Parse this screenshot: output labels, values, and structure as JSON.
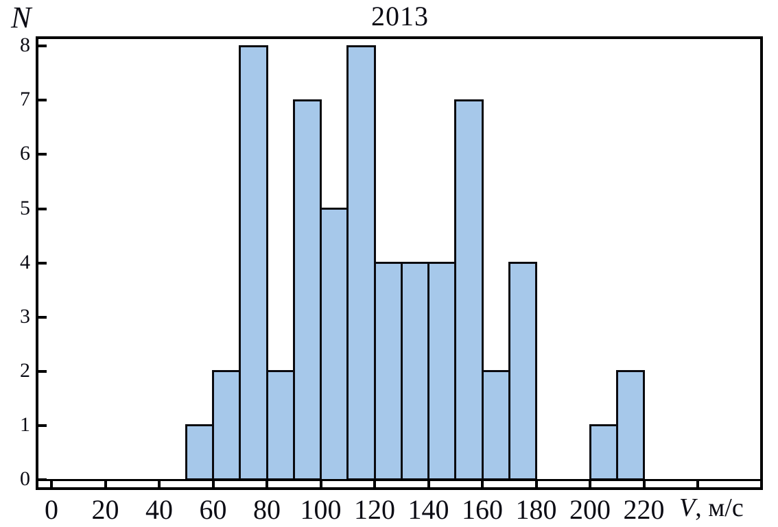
{
  "figure": {
    "title": "2013",
    "y_axis_letter": "N",
    "x_axis_letter": "V",
    "x_axis_unit_suffix": ", м/с"
  },
  "chart_data": {
    "type": "bar",
    "title": "2013",
    "xlabel": "V, м/с",
    "ylabel": "N",
    "grid": false,
    "legend": null,
    "bin_width": 10,
    "xlim": [
      -5,
      265
    ],
    "ylim": [
      0,
      8
    ],
    "y_ticks": [
      0,
      1,
      2,
      3,
      4,
      5,
      6,
      7,
      8
    ],
    "x_ticks_all": [
      0,
      20,
      40,
      60,
      80,
      100,
      120,
      140,
      160,
      180,
      200,
      220,
      240
    ],
    "x_tick_labels": [
      0,
      20,
      40,
      60,
      80,
      100,
      120,
      140,
      160,
      180,
      200,
      220
    ],
    "bins": [
      {
        "from": 50,
        "to": 60,
        "count": 1
      },
      {
        "from": 60,
        "to": 70,
        "count": 2
      },
      {
        "from": 70,
        "to": 80,
        "count": 8
      },
      {
        "from": 80,
        "to": 90,
        "count": 2
      },
      {
        "from": 90,
        "to": 100,
        "count": 7
      },
      {
        "from": 100,
        "to": 110,
        "count": 5
      },
      {
        "from": 110,
        "to": 120,
        "count": 8
      },
      {
        "from": 120,
        "to": 130,
        "count": 4
      },
      {
        "from": 130,
        "to": 140,
        "count": 4
      },
      {
        "from": 140,
        "to": 150,
        "count": 4
      },
      {
        "from": 150,
        "to": 160,
        "count": 7
      },
      {
        "from": 160,
        "to": 170,
        "count": 2
      },
      {
        "from": 170,
        "to": 180,
        "count": 4
      },
      {
        "from": 200,
        "to": 210,
        "count": 1
      },
      {
        "from": 210,
        "to": 220,
        "count": 2
      }
    ],
    "colors": {
      "bar_fill": "#a6c8ea",
      "bar_border": "#0a0a0f",
      "axis": "#000000",
      "text": "#0c0c14"
    }
  }
}
